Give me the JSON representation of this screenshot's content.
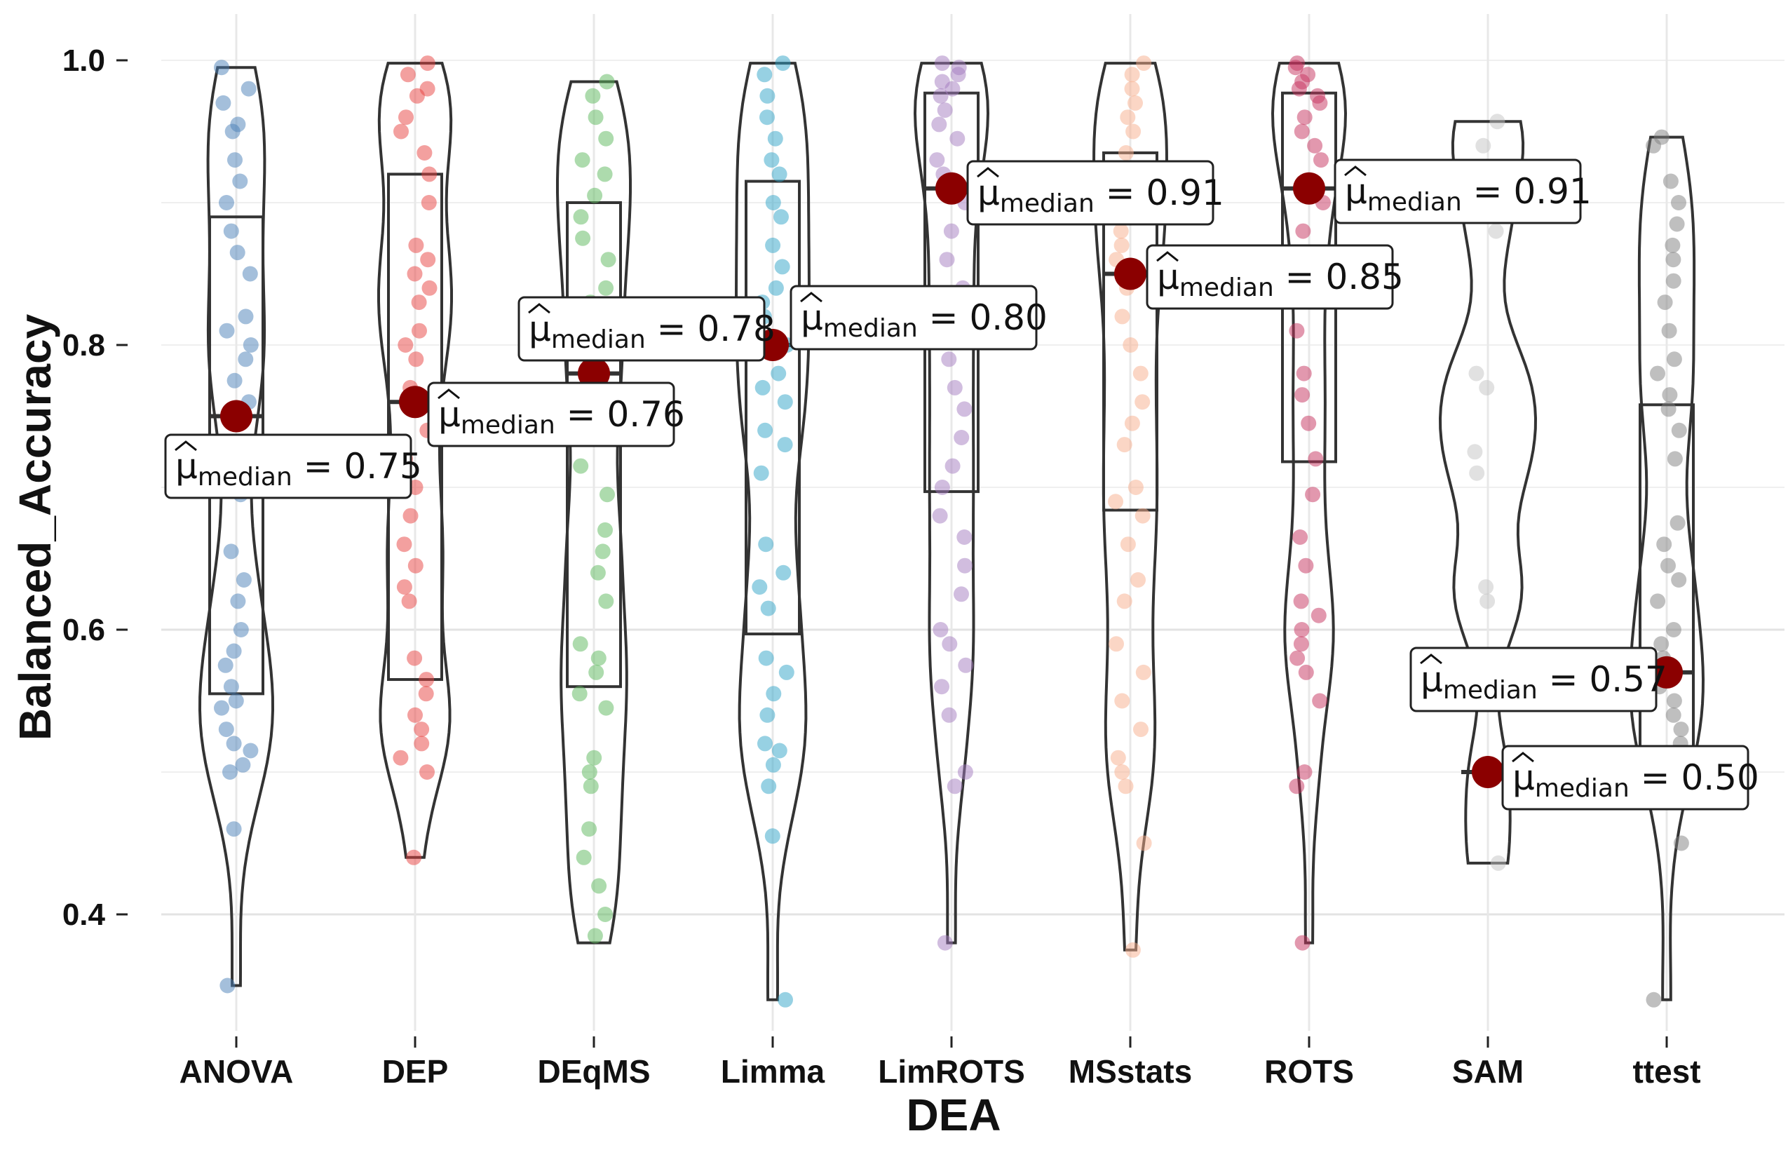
{
  "chart_data": {
    "type": "violin",
    "xlabel": "DEA",
    "ylabel": "Balanced_Accuracy",
    "ylim": [
      0.32,
      1.02
    ],
    "yticks": [
      "0.4",
      "0.6",
      "0.8",
      "1.0"
    ],
    "grid": true,
    "legend": "none",
    "median_symbol": "μ",
    "median_subscript": "median",
    "median_color": "#8b0000",
    "groups": [
      {
        "name": "ANOVA",
        "color": "#4a7fb8",
        "min": 0.35,
        "q1": 0.555,
        "median": 0.75,
        "q3": 0.89,
        "max": 0.995,
        "label": "0.75",
        "points": [
          0.995,
          0.98,
          0.97,
          0.955,
          0.95,
          0.93,
          0.915,
          0.9,
          0.88,
          0.865,
          0.85,
          0.82,
          0.81,
          0.8,
          0.79,
          0.775,
          0.76,
          0.745,
          0.695,
          0.655,
          0.635,
          0.62,
          0.6,
          0.585,
          0.575,
          0.56,
          0.55,
          0.545,
          0.53,
          0.52,
          0.515,
          0.505,
          0.5,
          0.46,
          0.35
        ]
      },
      {
        "name": "DEP",
        "color": "#e8423f",
        "min": 0.44,
        "q1": 0.565,
        "median": 0.76,
        "q3": 0.92,
        "max": 0.998,
        "label": "0.76",
        "points": [
          0.998,
          0.99,
          0.98,
          0.975,
          0.96,
          0.95,
          0.935,
          0.92,
          0.9,
          0.87,
          0.86,
          0.85,
          0.84,
          0.83,
          0.81,
          0.8,
          0.79,
          0.77,
          0.74,
          0.72,
          0.7,
          0.68,
          0.66,
          0.645,
          0.63,
          0.62,
          0.58,
          0.565,
          0.555,
          0.54,
          0.53,
          0.52,
          0.51,
          0.5,
          0.44
        ]
      },
      {
        "name": "DEqMS",
        "color": "#5cb85c",
        "min": 0.38,
        "q1": 0.56,
        "median": 0.78,
        "q3": 0.9,
        "max": 0.985,
        "label": "0.78",
        "points": [
          0.985,
          0.975,
          0.96,
          0.945,
          0.93,
          0.92,
          0.905,
          0.89,
          0.875,
          0.86,
          0.84,
          0.83,
          0.8,
          0.78,
          0.77,
          0.76,
          0.715,
          0.695,
          0.67,
          0.655,
          0.64,
          0.62,
          0.59,
          0.58,
          0.57,
          0.555,
          0.545,
          0.51,
          0.5,
          0.49,
          0.46,
          0.44,
          0.42,
          0.4,
          0.385
        ]
      },
      {
        "name": "Limma",
        "color": "#2fa4c8",
        "min": 0.34,
        "q1": 0.597,
        "median": 0.8,
        "q3": 0.915,
        "max": 0.998,
        "label": "0.80",
        "points": [
          0.998,
          0.99,
          0.975,
          0.96,
          0.945,
          0.93,
          0.92,
          0.9,
          0.89,
          0.87,
          0.855,
          0.84,
          0.83,
          0.82,
          0.8,
          0.78,
          0.77,
          0.76,
          0.74,
          0.73,
          0.71,
          0.66,
          0.64,
          0.63,
          0.615,
          0.58,
          0.57,
          0.555,
          0.54,
          0.52,
          0.515,
          0.505,
          0.49,
          0.455,
          0.34
        ]
      },
      {
        "name": "LimROTS",
        "color": "#a37bbf",
        "min": 0.38,
        "q1": 0.697,
        "median": 0.91,
        "q3": 0.977,
        "max": 0.998,
        "label": "0.91",
        "points": [
          0.998,
          0.995,
          0.99,
          0.985,
          0.98,
          0.975,
          0.965,
          0.955,
          0.945,
          0.93,
          0.92,
          0.9,
          0.88,
          0.86,
          0.84,
          0.83,
          0.81,
          0.79,
          0.77,
          0.755,
          0.735,
          0.715,
          0.7,
          0.68,
          0.665,
          0.645,
          0.625,
          0.6,
          0.59,
          0.575,
          0.56,
          0.54,
          0.5,
          0.49,
          0.38
        ]
      },
      {
        "name": "MSstats",
        "color": "#f8ae8c",
        "min": 0.375,
        "q1": 0.684,
        "median": 0.85,
        "q3": 0.935,
        "max": 0.998,
        "label": "0.85",
        "points": [
          0.998,
          0.99,
          0.98,
          0.97,
          0.96,
          0.95,
          0.935,
          0.92,
          0.905,
          0.89,
          0.88,
          0.87,
          0.86,
          0.84,
          0.82,
          0.8,
          0.78,
          0.76,
          0.745,
          0.73,
          0.7,
          0.69,
          0.68,
          0.66,
          0.635,
          0.62,
          0.59,
          0.57,
          0.55,
          0.53,
          0.51,
          0.5,
          0.49,
          0.45,
          0.375
        ]
      },
      {
        "name": "ROTS",
        "color": "#c5325e",
        "min": 0.38,
        "q1": 0.718,
        "median": 0.91,
        "q3": 0.977,
        "max": 0.998,
        "label": "0.91",
        "points": [
          0.998,
          0.995,
          0.99,
          0.985,
          0.98,
          0.975,
          0.97,
          0.96,
          0.95,
          0.94,
          0.93,
          0.915,
          0.9,
          0.88,
          0.86,
          0.84,
          0.81,
          0.78,
          0.765,
          0.745,
          0.72,
          0.695,
          0.665,
          0.645,
          0.62,
          0.61,
          0.6,
          0.59,
          0.58,
          0.57,
          0.55,
          0.5,
          0.49,
          0.38
        ]
      },
      {
        "name": "SAM",
        "color": "#c4c4c4",
        "min": 0.436,
        "q1": 0.5,
        "median": 0.5,
        "q3": 0.5,
        "max": 0.957,
        "label": "0.50",
        "no_box": true,
        "points": [
          0.957,
          0.94,
          0.88,
          0.78,
          0.77,
          0.725,
          0.71,
          0.63,
          0.62,
          0.5,
          0.436
        ]
      },
      {
        "name": "ttest",
        "color": "#7f7f7f",
        "min": 0.34,
        "q1": 0.5,
        "median": 0.57,
        "q3": 0.758,
        "max": 0.946,
        "label": "0.57",
        "points": [
          0.946,
          0.94,
          0.915,
          0.9,
          0.885,
          0.87,
          0.86,
          0.845,
          0.83,
          0.81,
          0.79,
          0.78,
          0.765,
          0.755,
          0.74,
          0.72,
          0.675,
          0.66,
          0.645,
          0.635,
          0.62,
          0.6,
          0.59,
          0.58,
          0.57,
          0.56,
          0.55,
          0.54,
          0.53,
          0.52,
          0.51,
          0.5,
          0.45,
          0.34
        ]
      }
    ],
    "annotations": [
      {
        "label": "0.75",
        "group": "ANOVA"
      },
      {
        "label": "0.76",
        "group": "DEP"
      },
      {
        "label": "0.78",
        "group": "DEqMS"
      },
      {
        "label": "0.80",
        "group": "Limma"
      },
      {
        "label": "0.91",
        "group": "LimROTS"
      },
      {
        "label": "0.85",
        "group": "MSstats"
      },
      {
        "label": "0.91",
        "group": "ROTS"
      },
      {
        "label": "0.57",
        "group": "ttest"
      },
      {
        "label": "0.50",
        "group": "SAM"
      }
    ]
  }
}
